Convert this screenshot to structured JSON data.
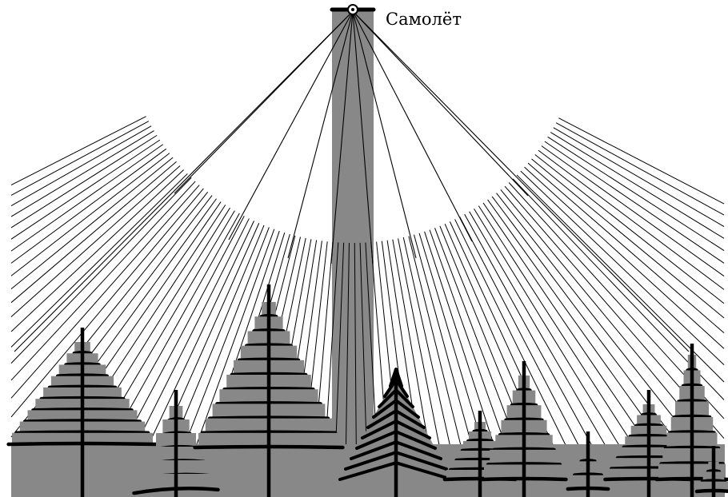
{
  "labels": {
    "plane": "Самолёт"
  },
  "colors": {
    "fill": "#888888",
    "ink": "#000000",
    "background": "#ffffff"
  }
}
